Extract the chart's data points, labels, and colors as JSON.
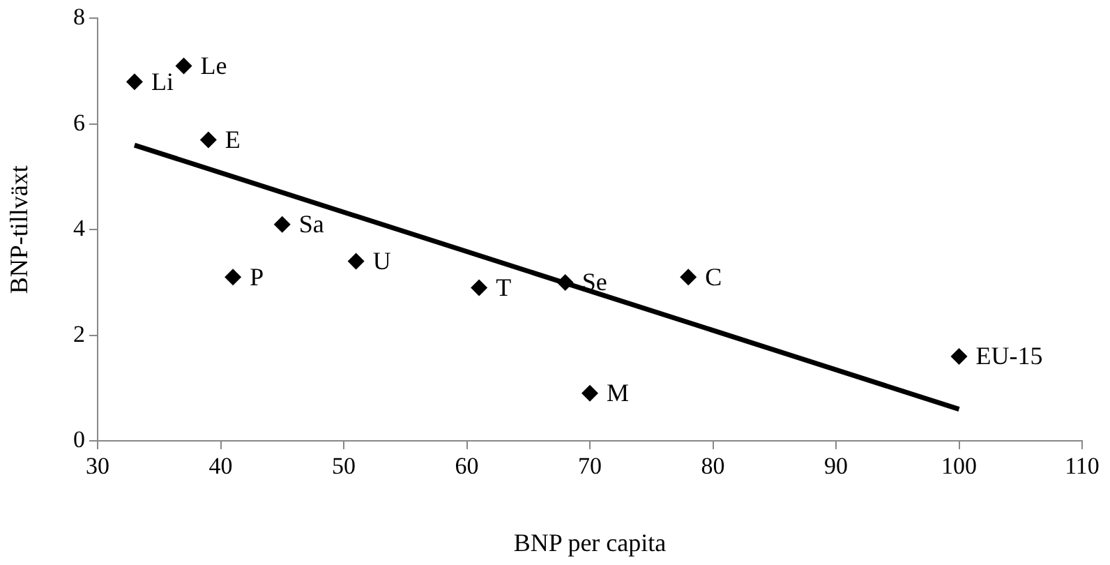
{
  "chart_data": {
    "type": "scatter",
    "xlabel": "BNP per capita",
    "ylabel": "BNP-tillväxt",
    "xlim": [
      30,
      110
    ],
    "xticks": [
      30,
      40,
      50,
      60,
      70,
      80,
      90,
      100,
      110
    ],
    "ylim": [
      0,
      8
    ],
    "yticks": [
      0,
      2,
      4,
      6,
      8
    ],
    "marker": "diamond",
    "series": [
      {
        "type": "scatter",
        "color": "#000000",
        "x": [
          33,
          37,
          39,
          45,
          41,
          51,
          61,
          68,
          78,
          70,
          100
        ],
        "values": [
          6.8,
          7.1,
          5.7,
          4.1,
          3.1,
          3.4,
          2.9,
          3.0,
          3.1,
          0.9,
          1.6
        ],
        "value_labels": [
          "Li",
          "Le",
          "E",
          "Sa",
          "P",
          "U",
          "T",
          "Se",
          "C",
          "M",
          "EU-15"
        ]
      },
      {
        "type": "line",
        "color": "#000000",
        "x": [
          33,
          100
        ],
        "values": [
          5.6,
          0.6
        ],
        "marker": "none"
      }
    ]
  }
}
